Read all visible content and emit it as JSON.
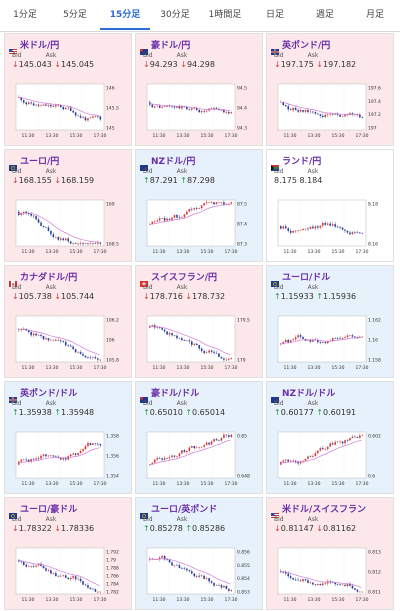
{
  "tabs": [
    {
      "label": "1分足",
      "active": false
    },
    {
      "label": "5分足",
      "active": false
    },
    {
      "label": "15分足",
      "active": true
    },
    {
      "label": "30分足",
      "active": false
    },
    {
      "label": "1時間足",
      "active": false
    },
    {
      "label": "日足",
      "active": false
    },
    {
      "label": "週足",
      "active": false
    },
    {
      "label": "月足",
      "active": false
    }
  ],
  "colors": {
    "accent": "#2c6bd6",
    "down_bg": "#fce8ea",
    "up_bg": "#e7f1fb",
    "pair_text": "#6a2ea8",
    "bull": "#d43b3b",
    "bear": "#2a3e9b",
    "ma": "#d17ad6"
  },
  "bid_label": "Bid",
  "ask_label": "Ask",
  "pairs": [
    {
      "name": "米ドル/円",
      "dir": "down",
      "bid": "145.043",
      "ask": "145.045",
      "flag": "us",
      "yticks": [
        "146",
        "145.5",
        "145"
      ],
      "xticks": [
        "11:30",
        "13:30",
        "15:30",
        "17:30"
      ],
      "trend": -0.6,
      "ma": "down"
    },
    {
      "name": "豪ドル/円",
      "dir": "down",
      "bid": "94.293",
      "ask": "94.298",
      "flag": "au",
      "yticks": [
        "94.5",
        "94.4",
        "94.3"
      ],
      "xticks": [
        "11:30",
        "13:30",
        "15:30",
        "17:30"
      ],
      "trend": -0.3,
      "ma": "down"
    },
    {
      "name": "英ポンド/円",
      "dir": "down",
      "bid": "197.175",
      "ask": "197.182",
      "flag": "gb",
      "yticks": [
        "197.6",
        "197.4",
        "197.2",
        "197"
      ],
      "xticks": [
        "11:30",
        "13:30",
        "15:30",
        "17:30"
      ],
      "trend": -0.3,
      "ma": "down"
    },
    {
      "name": "ユーロ/円",
      "dir": "down",
      "bid": "168.155",
      "ask": "168.159",
      "flag": "eu",
      "yticks": [
        "169",
        "168.5"
      ],
      "xticks": [
        "11:30",
        "13:30",
        "15:30",
        "17:30"
      ],
      "trend": -0.7,
      "ma": "down"
    },
    {
      "name": "NZドル/円",
      "dir": "up",
      "bid": "87.291",
      "ask": "87.298",
      "flag": "nz",
      "yticks": [
        "87.5",
        "87.4",
        "87.3"
      ],
      "xticks": [
        "11:30",
        "13:30",
        "15:30",
        "17:30"
      ],
      "trend": 0.1,
      "ma": "flat"
    },
    {
      "name": "ランド/円",
      "dir": "none",
      "bid": "8.175",
      "ask": "8.184",
      "flag": "za",
      "yticks": [
        "8.18",
        "8.16"
      ],
      "xticks": [
        "11:30",
        "13:30",
        "15:30",
        "17:30"
      ],
      "trend": 0.2,
      "ma": "none"
    },
    {
      "name": "カナダドル/円",
      "dir": "down",
      "bid": "105.738",
      "ask": "105.744",
      "flag": "ca",
      "yticks": [
        "106.2",
        "106",
        "105.8"
      ],
      "xticks": [
        "11:30",
        "13:30",
        "15:30",
        "17:30"
      ],
      "trend": -0.6,
      "ma": "down"
    },
    {
      "name": "スイスフラン/円",
      "dir": "down",
      "bid": "178.716",
      "ask": "178.732",
      "flag": "ch",
      "yticks": [
        "179.5",
        "179"
      ],
      "xticks": [
        "11:30",
        "13:30",
        "15:30",
        "17:30"
      ],
      "trend": -0.7,
      "ma": "down"
    },
    {
      "name": "ユーロ/ドル",
      "dir": "up",
      "bid": "1.15933",
      "ask": "1.15936",
      "flag": "eu",
      "yticks": [
        "1.162",
        "1.16",
        "1.158"
      ],
      "xticks": [
        "11:30",
        "13:30",
        "15:30",
        "17:30"
      ],
      "trend": 0.3,
      "ma": "flat"
    },
    {
      "name": "英ポンド/ドル",
      "dir": "up",
      "bid": "1.35938",
      "ask": "1.35948",
      "flag": "gb",
      "yticks": [
        "1.358",
        "1.356",
        "1.354"
      ],
      "xticks": [
        "11:30",
        "13:30",
        "15:30",
        "17:30"
      ],
      "trend": 0.6,
      "ma": "up"
    },
    {
      "name": "豪ドル/ドル",
      "dir": "up",
      "bid": "0.65010",
      "ask": "0.65014",
      "flag": "au",
      "yticks": [
        "0.65",
        "0.648"
      ],
      "xticks": [
        "11:30",
        "13:30",
        "15:30",
        "17:30"
      ],
      "trend": 0.6,
      "ma": "up"
    },
    {
      "name": "NZドル/ドル",
      "dir": "up",
      "bid": "0.60177",
      "ask": "0.60191",
      "flag": "nz",
      "yticks": [
        "0.602",
        "0.6"
      ],
      "xticks": [
        "11:30",
        "13:30",
        "15:30",
        "17:30"
      ],
      "trend": 0.6,
      "ma": "up"
    },
    {
      "name": "ユーロ/豪ドル",
      "dir": "down",
      "bid": "1.78322",
      "ask": "1.78336",
      "flag": "eu",
      "yticks": [
        "1.792",
        "1.79",
        "1.788",
        "1.786",
        "1.784",
        "1.782"
      ],
      "xticks": [
        "11:30",
        "13:30",
        "15:30",
        "17:30"
      ],
      "trend": -0.7,
      "ma": "down"
    },
    {
      "name": "ユーロ/英ポンド",
      "dir": "up",
      "bid": "0.85278",
      "ask": "0.85286",
      "flag": "eu",
      "yticks": [
        "0.856",
        "0.855",
        "0.854",
        "0.853"
      ],
      "xticks": [
        "11:30",
        "13:30",
        "15:30",
        "17:30"
      ],
      "trend": -0.7,
      "ma": "down"
    },
    {
      "name": "米ドル/スイスフラン",
      "dir": "down",
      "bid": "0.81147",
      "ask": "0.81162",
      "flag": "us",
      "yticks": [
        "0.813",
        "0.812",
        "0.811"
      ],
      "xticks": [
        "11:30",
        "13:30",
        "15:30",
        "17:30"
      ],
      "trend": 0.0,
      "ma": "flat"
    }
  ]
}
